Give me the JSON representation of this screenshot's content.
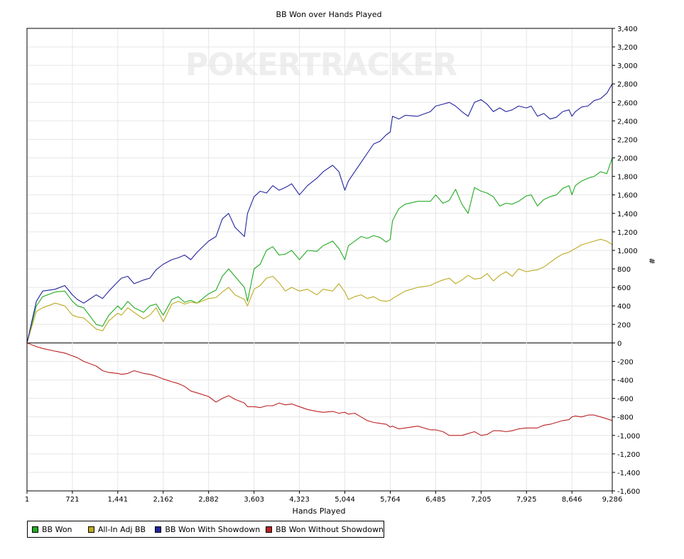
{
  "chart_data": {
    "type": "line",
    "title": "BB Won over Hands Played",
    "xlabel": "Hands Played",
    "ylabel": "#",
    "watermark": "POKERTRACKER",
    "xlim": [
      1,
      9286
    ],
    "ylim": [
      -1600,
      3400
    ],
    "x_ticks": [
      1,
      721,
      1441,
      2162,
      2882,
      3603,
      4323,
      5044,
      5764,
      6485,
      7205,
      7925,
      8646,
      9286
    ],
    "x_tick_labels": [
      "1",
      "721",
      "1,441",
      "2,162",
      "2,882",
      "3,603",
      "4,323",
      "5,044",
      "5,764",
      "6,485",
      "7,205",
      "7,925",
      "8,646",
      "9,286"
    ],
    "y_ticks": [
      3400,
      3200,
      3000,
      2800,
      2600,
      2400,
      2200,
      2000,
      1800,
      1600,
      1400,
      1200,
      1000,
      800,
      600,
      400,
      200,
      0,
      -200,
      -400,
      -600,
      -800,
      -1000,
      -1200,
      -1400,
      -1600
    ],
    "y_tick_labels": [
      "3,400",
      "3,200",
      "3,000",
      "2,800",
      "2,600",
      "2,400",
      "2,200",
      "2,000",
      "1,800",
      "1,600",
      "1,400",
      "1,200",
      "1,000",
      "800",
      "600",
      "400",
      "200",
      "0",
      "-200",
      "-400",
      "-600",
      "-800",
      "-1,000",
      "-1,200",
      "-1,400",
      "-1,600"
    ],
    "grid": true,
    "legend_position": "bottom-left",
    "x": [
      1,
      150,
      250,
      450,
      600,
      721,
      800,
      900,
      1100,
      1200,
      1300,
      1441,
      1500,
      1600,
      1700,
      1850,
      1950,
      2050,
      2162,
      2300,
      2400,
      2500,
      2600,
      2700,
      2882,
      3000,
      3100,
      3200,
      3300,
      3450,
      3500,
      3603,
      3700,
      3800,
      3900,
      4000,
      4100,
      4200,
      4323,
      4450,
      4600,
      4700,
      4850,
      4950,
      5044,
      5100,
      5200,
      5300,
      5400,
      5500,
      5600,
      5700,
      5764,
      5800,
      5900,
      6000,
      6200,
      6400,
      6485,
      6600,
      6700,
      6800,
      6900,
      7000,
      7100,
      7205,
      7300,
      7400,
      7500,
      7600,
      7700,
      7800,
      7925,
      8000,
      8100,
      8200,
      8300,
      8400,
      8500,
      8600,
      8646,
      8700,
      8800,
      8900,
      9000,
      9100,
      9200,
      9286
    ],
    "series": [
      {
        "name": "BB Won",
        "color": "#22aa22",
        "values": [
          0,
          400,
          500,
          550,
          560,
          450,
          400,
          380,
          200,
          180,
          300,
          400,
          360,
          450,
          380,
          330,
          400,
          420,
          300,
          470,
          500,
          440,
          460,
          430,
          530,
          570,
          720,
          800,
          720,
          600,
          450,
          800,
          850,
          1000,
          1040,
          950,
          960,
          1000,
          900,
          1000,
          990,
          1050,
          1100,
          1020,
          900,
          1050,
          1100,
          1150,
          1130,
          1160,
          1140,
          1090,
          1120,
          1320,
          1450,
          1500,
          1530,
          1530,
          1600,
          1510,
          1540,
          1660,
          1500,
          1400,
          1680,
          1640,
          1620,
          1580,
          1480,
          1510,
          1500,
          1530,
          1590,
          1600,
          1480,
          1550,
          1580,
          1600,
          1670,
          1700,
          1600,
          1700,
          1750,
          1780,
          1800,
          1850,
          1830,
          2000
        ]
      },
      {
        "name": "All-In Adj BB",
        "color": "#bbaa22",
        "values": [
          0,
          340,
          380,
          430,
          400,
          300,
          280,
          270,
          150,
          130,
          240,
          320,
          300,
          380,
          330,
          260,
          300,
          380,
          230,
          420,
          450,
          420,
          440,
          430,
          480,
          490,
          550,
          600,
          520,
          470,
          400,
          580,
          620,
          700,
          720,
          650,
          560,
          600,
          560,
          580,
          520,
          580,
          560,
          640,
          550,
          470,
          500,
          520,
          480,
          500,
          460,
          450,
          460,
          480,
          520,
          560,
          600,
          620,
          650,
          680,
          700,
          640,
          680,
          730,
          690,
          700,
          750,
          670,
          730,
          770,
          720,
          800,
          770,
          780,
          790,
          820,
          870,
          920,
          960,
          980,
          1000,
          1020,
          1060,
          1080,
          1100,
          1120,
          1100,
          1060
        ]
      },
      {
        "name": "BB Won With Showdown",
        "color": "#22229e",
        "values": [
          0,
          450,
          560,
          580,
          620,
          520,
          470,
          430,
          520,
          480,
          560,
          660,
          700,
          720,
          640,
          680,
          700,
          790,
          850,
          900,
          920,
          950,
          900,
          980,
          1100,
          1150,
          1340,
          1400,
          1250,
          1150,
          1400,
          1580,
          1640,
          1620,
          1700,
          1650,
          1680,
          1720,
          1600,
          1700,
          1780,
          1850,
          1920,
          1850,
          1650,
          1750,
          1850,
          1950,
          2050,
          2150,
          2180,
          2250,
          2280,
          2450,
          2420,
          2460,
          2450,
          2500,
          2560,
          2580,
          2600,
          2560,
          2500,
          2450,
          2600,
          2630,
          2580,
          2500,
          2540,
          2500,
          2520,
          2560,
          2540,
          2560,
          2450,
          2480,
          2420,
          2440,
          2500,
          2520,
          2450,
          2500,
          2550,
          2560,
          2620,
          2640,
          2700,
          2800
        ]
      },
      {
        "name": "BB Won Without Showdown",
        "color": "#bb2222",
        "values": [
          0,
          -40,
          -60,
          -90,
          -110,
          -140,
          -160,
          -200,
          -250,
          -300,
          -320,
          -330,
          -340,
          -330,
          -300,
          -330,
          -340,
          -360,
          -390,
          -420,
          -440,
          -470,
          -520,
          -540,
          -580,
          -640,
          -600,
          -570,
          -610,
          -650,
          -690,
          -690,
          -700,
          -680,
          -680,
          -650,
          -670,
          -660,
          -690,
          -720,
          -740,
          -750,
          -740,
          -760,
          -750,
          -770,
          -760,
          -800,
          -840,
          -860,
          -870,
          -880,
          -910,
          -900,
          -930,
          -920,
          -900,
          -940,
          -940,
          -960,
          -1000,
          -1000,
          -1000,
          -980,
          -960,
          -1000,
          -990,
          -950,
          -950,
          -960,
          -950,
          -930,
          -920,
          -920,
          -920,
          -890,
          -880,
          -860,
          -840,
          -830,
          -800,
          -790,
          -800,
          -780,
          -780,
          -800,
          -820,
          -840
        ]
      }
    ]
  }
}
